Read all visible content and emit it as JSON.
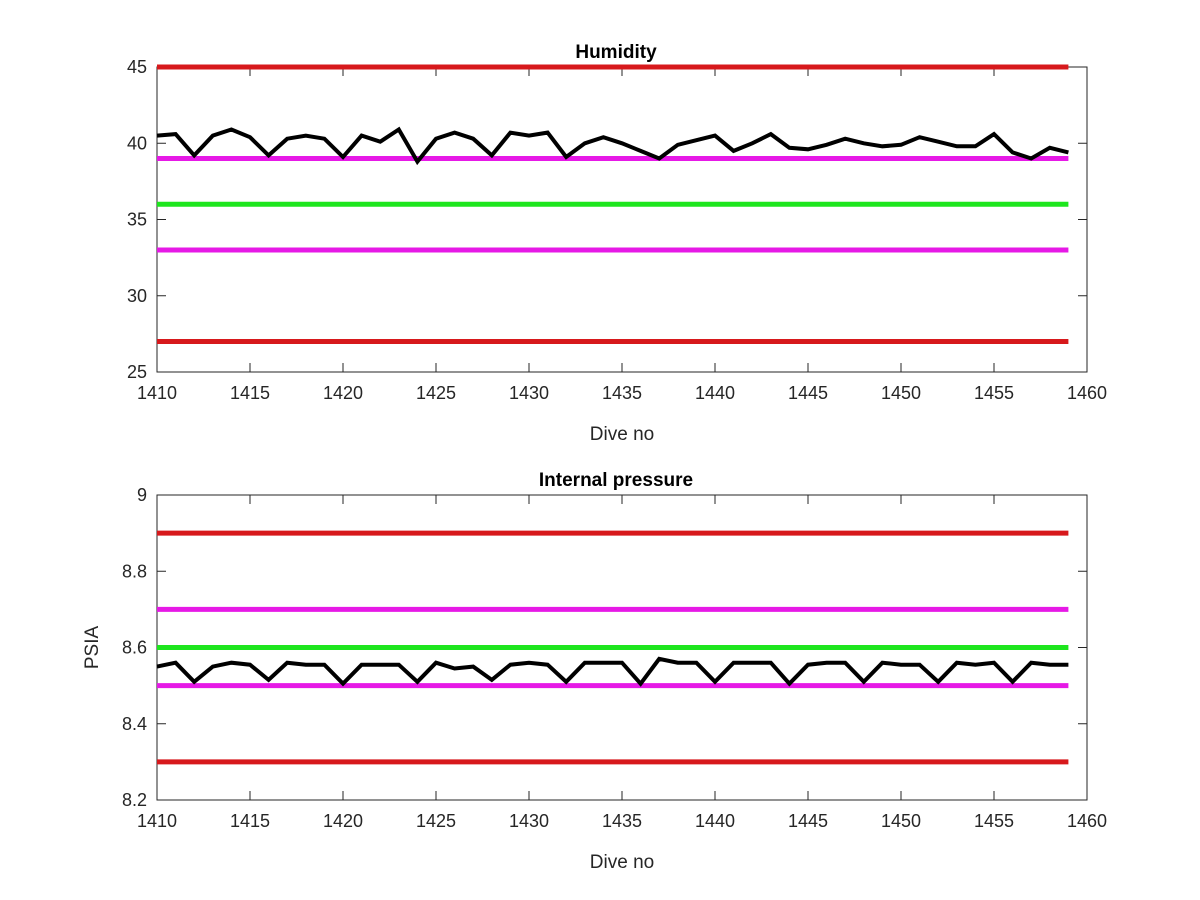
{
  "chart_data": [
    {
      "type": "line",
      "title": "Humidity",
      "xlabel": "Dive no",
      "ylabel": "",
      "xlim": [
        1410,
        1460
      ],
      "ylim": [
        25,
        45
      ],
      "xticks": [
        "1410",
        "1415",
        "1420",
        "1425",
        "1430",
        "1435",
        "1440",
        "1445",
        "1450",
        "1455",
        "1460"
      ],
      "yticks": [
        "25",
        "30",
        "35",
        "40",
        "45"
      ],
      "grid": false,
      "reference_lines": [
        {
          "y": 45,
          "x_range": [
            1410,
            1459
          ],
          "color": "#d7191c"
        },
        {
          "y": 39,
          "x_range": [
            1410,
            1459
          ],
          "color": "#e619e6"
        },
        {
          "y": 36,
          "x_range": [
            1410,
            1459
          ],
          "color": "#1ee61e"
        },
        {
          "y": 33,
          "x_range": [
            1410,
            1459
          ],
          "color": "#e619e6"
        },
        {
          "y": 27,
          "x_range": [
            1410,
            1459
          ],
          "color": "#d7191c"
        }
      ],
      "series": [
        {
          "color": "#000000",
          "x": [
            1410,
            1411,
            1412,
            1413,
            1414,
            1415,
            1416,
            1417,
            1418,
            1419,
            1420,
            1421,
            1422,
            1423,
            1424,
            1425,
            1426,
            1427,
            1428,
            1429,
            1430,
            1431,
            1432,
            1433,
            1434,
            1435,
            1436,
            1437,
            1438,
            1439,
            1440,
            1441,
            1442,
            1443,
            1444,
            1445,
            1446,
            1447,
            1448,
            1449,
            1450,
            1451,
            1452,
            1453,
            1454,
            1455,
            1456,
            1457,
            1458,
            1459
          ],
          "values": [
            40.5,
            40.6,
            39.2,
            40.5,
            40.9,
            40.4,
            39.2,
            40.3,
            40.5,
            40.3,
            39.1,
            40.5,
            40.1,
            40.9,
            38.8,
            40.3,
            40.7,
            40.3,
            39.2,
            40.7,
            40.5,
            40.7,
            39.1,
            40.0,
            40.4,
            40.0,
            39.5,
            39.0,
            39.9,
            40.2,
            40.5,
            39.5,
            40.0,
            40.6,
            39.7,
            39.6,
            39.9,
            40.3,
            40.0,
            39.8,
            39.9,
            40.4,
            40.1,
            39.8,
            39.8,
            40.6,
            39.4,
            39.0,
            39.7,
            39.4
          ]
        }
      ]
    },
    {
      "type": "line",
      "title": "Internal pressure",
      "xlabel": "Dive no",
      "ylabel": "PSIA",
      "xlim": [
        1410,
        1460
      ],
      "ylim": [
        8.2,
        9.0
      ],
      "xticks": [
        "1410",
        "1415",
        "1420",
        "1425",
        "1430",
        "1435",
        "1440",
        "1445",
        "1450",
        "1455",
        "1460"
      ],
      "yticks": [
        "8.2",
        "8.4",
        "8.6",
        "8.8",
        "9"
      ],
      "grid": false,
      "reference_lines": [
        {
          "y": 8.9,
          "x_range": [
            1410,
            1459
          ],
          "color": "#d7191c"
        },
        {
          "y": 8.7,
          "x_range": [
            1410,
            1459
          ],
          "color": "#e619e6"
        },
        {
          "y": 8.6,
          "x_range": [
            1410,
            1459
          ],
          "color": "#1ee61e"
        },
        {
          "y": 8.5,
          "x_range": [
            1410,
            1459
          ],
          "color": "#e619e6"
        },
        {
          "y": 8.3,
          "x_range": [
            1410,
            1459
          ],
          "color": "#d7191c"
        }
      ],
      "series": [
        {
          "color": "#000000",
          "x": [
            1410,
            1411,
            1412,
            1413,
            1414,
            1415,
            1416,
            1417,
            1418,
            1419,
            1420,
            1421,
            1422,
            1423,
            1424,
            1425,
            1426,
            1427,
            1428,
            1429,
            1430,
            1431,
            1432,
            1433,
            1434,
            1435,
            1436,
            1437,
            1438,
            1439,
            1440,
            1441,
            1442,
            1443,
            1444,
            1445,
            1446,
            1447,
            1448,
            1449,
            1450,
            1451,
            1452,
            1453,
            1454,
            1455,
            1456,
            1457,
            1458,
            1459
          ],
          "values": [
            8.55,
            8.56,
            8.51,
            8.55,
            8.56,
            8.555,
            8.515,
            8.56,
            8.555,
            8.555,
            8.505,
            8.555,
            8.555,
            8.555,
            8.51,
            8.56,
            8.545,
            8.55,
            8.515,
            8.555,
            8.56,
            8.555,
            8.51,
            8.56,
            8.56,
            8.56,
            8.505,
            8.57,
            8.56,
            8.56,
            8.51,
            8.56,
            8.56,
            8.56,
            8.505,
            8.555,
            8.56,
            8.56,
            8.51,
            8.56,
            8.555,
            8.555,
            8.51,
            8.56,
            8.555,
            8.56,
            8.51,
            8.56,
            8.555,
            8.555
          ]
        }
      ]
    }
  ]
}
